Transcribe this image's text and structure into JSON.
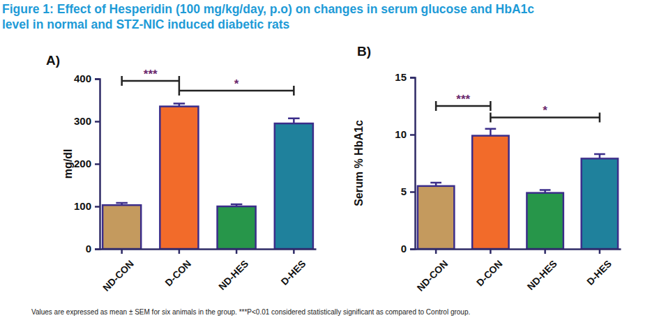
{
  "title": [
    "Figure 1: Effect of Hesperidin (100 mg/kg/day, p.o) on changes in serum glucose and HbA1c",
    "level in normal and STZ-NIC induced diabetic rats"
  ],
  "footnote": "Values are  expressed as mean ± SEM for six animals in the group. ***P<0.01 considered statistically significant as compared to Control group.",
  "chart_data": [
    {
      "type": "bar",
      "panel_label": "A)",
      "y_label": "mg/dl",
      "categories": [
        "ND-CON",
        "D-CON",
        "ND-HES",
        "D-HES"
      ],
      "values": [
        103,
        335,
        100,
        295
      ],
      "errors": [
        5,
        7,
        5,
        12
      ],
      "colors": [
        "#c49a5e",
        "#f26b2a",
        "#27964a",
        "#1f819c"
      ],
      "ylim": [
        0,
        400
      ],
      "yticks": [
        0,
        100,
        200,
        300,
        400
      ],
      "annotations": [
        {
          "label": "***",
          "from": "ND-CON",
          "to": "D-CON",
          "y": 395
        },
        {
          "label": "*",
          "from": "D-CON",
          "to": "D-HES",
          "y": 372
        }
      ]
    },
    {
      "type": "bar",
      "panel_label": "B)",
      "y_label": "Serum % HbA1c",
      "categories": [
        "ND-CON",
        "D-CON",
        "ND-HES",
        "D-HES"
      ],
      "values": [
        5.5,
        9.9,
        4.9,
        7.9
      ],
      "errors": [
        0.3,
        0.6,
        0.25,
        0.4
      ],
      "colors": [
        "#c49a5e",
        "#f26b2a",
        "#27964a",
        "#1f819c"
      ],
      "ylim": [
        0,
        15
      ],
      "yticks": [
        0,
        5,
        10,
        15
      ],
      "annotations": [
        {
          "label": "***",
          "from": "ND-CON",
          "to": "D-CON",
          "y": 12.5
        },
        {
          "label": "*",
          "from": "D-CON",
          "to": "D-HES",
          "y": 11.5
        }
      ]
    }
  ]
}
